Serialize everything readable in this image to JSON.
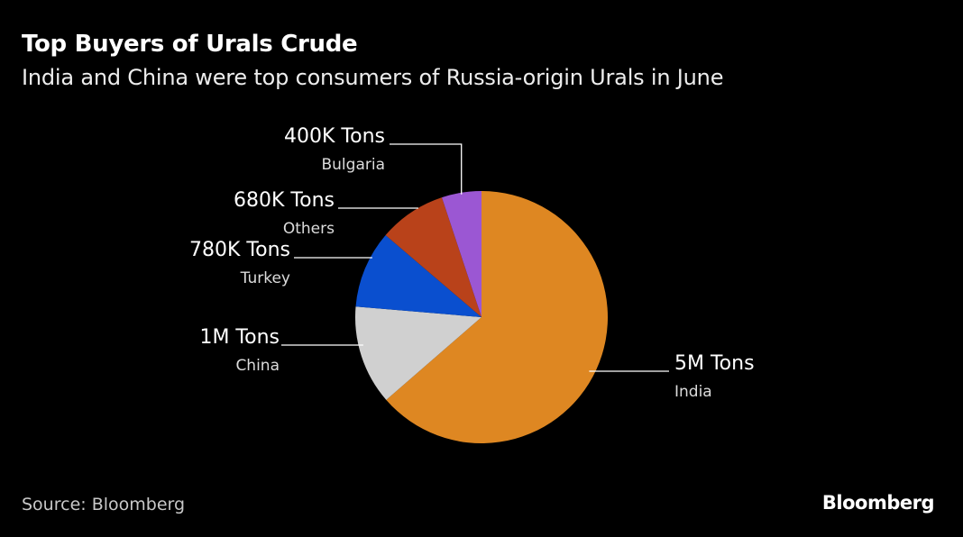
{
  "chart_data": {
    "type": "pie",
    "title": "Top Buyers of Urals Crude",
    "subtitle": "India and China were top consumers of Russia-origin Urals in June",
    "slices": [
      {
        "label": "India",
        "value": 5000000,
        "value_label": "5M Tons",
        "color": "#de8722"
      },
      {
        "label": "China",
        "value": 1000000,
        "value_label": "1M Tons",
        "color": "#d0d0d0"
      },
      {
        "label": "Turkey",
        "value": 780000,
        "value_label": "780K Tons",
        "color": "#0a4fcf"
      },
      {
        "label": "Others",
        "value": 680000,
        "value_label": "680K Tons",
        "color": "#b9421a"
      },
      {
        "label": "Bulgaria",
        "value": 400000,
        "value_label": "400K Tons",
        "color": "#9b57d3"
      }
    ],
    "units": "Tons",
    "source": "Source: Bloomberg",
    "legend": "none"
  },
  "brand": {
    "logo_text": "Bloomberg"
  }
}
